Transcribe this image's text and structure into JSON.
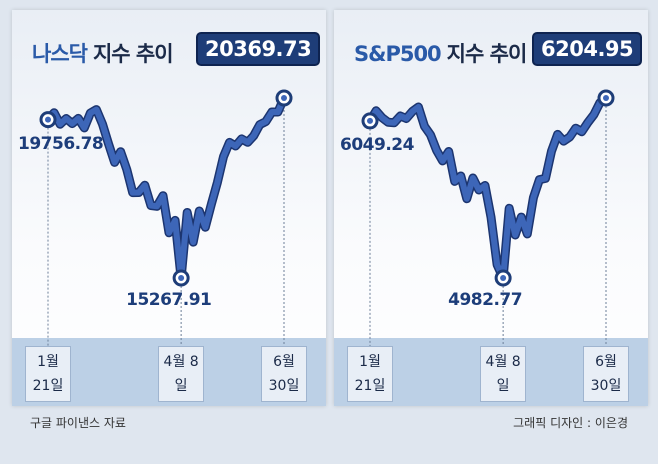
{
  "chart_data": [
    {
      "type": "line",
      "title_accent": "나스닥",
      "title": "지수 추이",
      "categories": [
        "1월 21일",
        null,
        null,
        null,
        null,
        null,
        null,
        null,
        null,
        null,
        null,
        null,
        null,
        null,
        null,
        null,
        null,
        null,
        null,
        null,
        null,
        null,
        "4월 8일",
        null,
        null,
        null,
        null,
        null,
        null,
        null,
        null,
        null,
        null,
        null,
        null,
        null,
        null,
        null,
        null,
        "6월 30일"
      ],
      "series": [
        {
          "name": "나스닥",
          "color": "#3d66b8",
          "values": [
            19756.78,
            19954,
            19627,
            19790,
            19643,
            19791,
            19523,
            19945,
            20041,
            19630,
            19075,
            18544,
            18847,
            18350,
            17689,
            17692,
            17899,
            17323,
            17299,
            17601,
            16550,
            16900,
            15267.91,
            17124,
            16286,
            17166,
            16708,
            17366,
            17977,
            18710,
            19112,
            19010,
            19211,
            19113,
            19298,
            19615,
            19701,
            19974,
            19973,
            20369.73
          ]
        }
      ]
    },
    {
      "type": "line",
      "title_accent": "S&P500",
      "title": "지수 추이",
      "categories": [
        "1월 21일",
        null,
        null,
        null,
        null,
        null,
        null,
        null,
        null,
        null,
        null,
        null,
        null,
        null,
        null,
        null,
        null,
        null,
        null,
        null,
        null,
        null,
        "4월 8일",
        null,
        null,
        null,
        null,
        null,
        null,
        null,
        null,
        null,
        null,
        null,
        null,
        null,
        null,
        null,
        null,
        "6월 30일"
      ],
      "series": [
        {
          "name": "S&P500",
          "color": "#3d66b8",
          "values": [
            6049.24,
            6118,
            6071,
            6040,
            6037,
            6083,
            6066,
            6114,
            6144,
            6013,
            5955,
            5849,
            5778,
            5842,
            5639,
            5675,
            5521,
            5662,
            5580,
            5611,
            5396,
            5074,
            4982.77,
            5456,
            5275,
            5396,
            5282,
            5528,
            5650,
            5659,
            5844,
            5958,
            5912,
            5940,
            6000,
            5976,
            6038,
            6092,
            6173,
            6204.95
          ]
        }
      ]
    }
  ],
  "source": "구글 파이낸스 자료",
  "credit": "그래픽 디자인 : 이은경"
}
